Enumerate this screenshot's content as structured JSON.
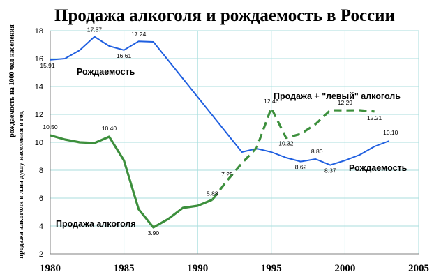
{
  "chart_data": {
    "type": "line",
    "title": "Продажа алкоголя и рождаемость в России",
    "ylabel_lines": [
      "рождаемость на 1000 чел населения",
      "продажа алкоголя в л.на душу населения в год"
    ],
    "xlim": [
      1980,
      2005
    ],
    "ylim": [
      2,
      18
    ],
    "xticks": [
      1980,
      1985,
      1990,
      1995,
      2000,
      2005
    ],
    "yticks": [
      2,
      4,
      6,
      8,
      10,
      12,
      14,
      16,
      18
    ],
    "grid": true,
    "colors": {
      "birth": "#1f5fe0",
      "alcohol": "#3c8f3c",
      "grid": "#a8dede",
      "axis": "#808080"
    },
    "series": [
      {
        "key": "birth",
        "name": "Рождаемость",
        "style": "solid",
        "points": [
          [
            1980,
            15.91
          ],
          [
            1981,
            16.0
          ],
          [
            1982,
            16.6
          ],
          [
            1983,
            17.57
          ],
          [
            1984,
            16.9
          ],
          [
            1985,
            16.61
          ],
          [
            1986,
            17.24
          ],
          [
            1987,
            17.2
          ],
          [
            1993,
            9.3
          ],
          [
            1994,
            9.55
          ],
          [
            1995,
            9.3
          ],
          [
            1996,
            8.9
          ],
          [
            1997,
            8.62
          ],
          [
            1998,
            8.8
          ],
          [
            1999,
            8.37
          ],
          [
            2000,
            8.7
          ],
          [
            2001,
            9.1
          ],
          [
            2002,
            9.7
          ],
          [
            2003,
            10.1
          ]
        ],
        "labels": [
          {
            "x": 1980,
            "y": 15.91,
            "text": "15.91"
          },
          {
            "x": 1983,
            "y": 17.57,
            "text": "17.57"
          },
          {
            "x": 1985,
            "y": 16.61,
            "text": "16.61"
          },
          {
            "x": 1986,
            "y": 17.24,
            "text": "17.24"
          },
          {
            "x": 1997,
            "y": 8.62,
            "text": "8.62"
          },
          {
            "x": 1998,
            "y": 8.8,
            "text": "8.80"
          },
          {
            "x": 1999,
            "y": 8.37,
            "text": "8.37"
          },
          {
            "x": 2003,
            "y": 10.1,
            "text": "10.10"
          }
        ]
      },
      {
        "key": "alcohol",
        "name": "Продажа алкоголя",
        "style": "solid",
        "points": [
          [
            1980,
            10.5
          ],
          [
            1981,
            10.2
          ],
          [
            1982,
            10.0
          ],
          [
            1983,
            9.95
          ],
          [
            1984,
            10.4
          ],
          [
            1985,
            8.7
          ],
          [
            1986,
            5.2
          ],
          [
            1987,
            3.9
          ],
          [
            1988,
            4.5
          ],
          [
            1989,
            5.3
          ],
          [
            1990,
            5.45
          ],
          [
            1991,
            5.88
          ]
        ],
        "labels": [
          {
            "x": 1980,
            "y": 10.5,
            "text": "10.50"
          },
          {
            "x": 1984,
            "y": 10.4,
            "text": "10.40"
          },
          {
            "x": 1987,
            "y": 3.9,
            "text": "3.90"
          },
          {
            "x": 1991,
            "y": 5.88,
            "text": "5.88"
          }
        ]
      },
      {
        "key": "alcohol_total",
        "name": "Продажа + \"левый\" алкоголь",
        "style": "dashed",
        "points": [
          [
            1991,
            5.88
          ],
          [
            1992,
            7.25
          ],
          [
            1993,
            8.5
          ],
          [
            1994,
            9.6
          ],
          [
            1995,
            12.46
          ],
          [
            1996,
            10.32
          ],
          [
            1997,
            10.6
          ],
          [
            1998,
            11.3
          ],
          [
            1999,
            12.3
          ],
          [
            2000,
            12.29
          ],
          [
            2001,
            12.3
          ],
          [
            2002,
            12.21
          ]
        ],
        "labels": [
          {
            "x": 1992,
            "y": 7.25,
            "text": "7.25"
          },
          {
            "x": 1995,
            "y": 12.46,
            "text": "12.46"
          },
          {
            "x": 1996,
            "y": 10.32,
            "text": "10.32"
          },
          {
            "x": 2000,
            "y": 12.29,
            "text": "12.29"
          },
          {
            "x": 2002,
            "y": 12.21,
            "text": "12.21"
          }
        ]
      }
    ],
    "series_labels": {
      "birth_upper": "Рождаемость",
      "birth_lower": "Рождаемость",
      "alcohol": "Продажа алкоголя",
      "alcohol_total": "Продажа + \"левый\" алкоголь"
    }
  }
}
